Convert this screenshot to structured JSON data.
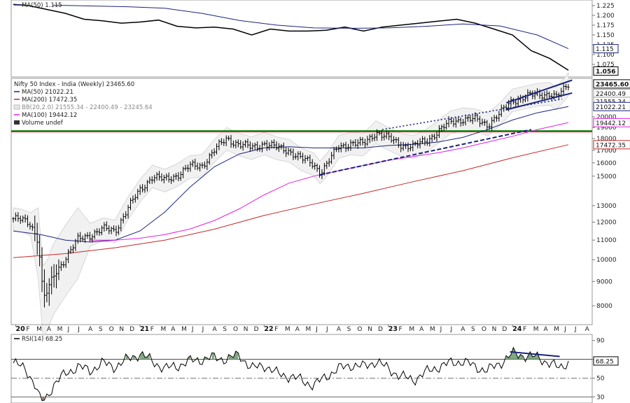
{
  "chart_data": [
    {
      "type": "line",
      "panel": "ratio",
      "legend": [
        {
          "name": "MA(50) 1.115",
          "color": "#1a237e"
        }
      ],
      "y_ticks": [
        "1.225",
        "1.200",
        "1.175",
        "1.150",
        "1.125",
        "1.100",
        "1.075"
      ],
      "last_value_tag": "1.056",
      "ma_tag": "1.115",
      "series": [
        {
          "role": "ratio",
          "color": "#000000",
          "x": [
            2019.98,
            2020.1,
            2020.25,
            2020.4,
            2020.55,
            2020.7,
            2020.85,
            2021.0,
            2021.15,
            2021.3,
            2021.45,
            2021.6,
            2021.75,
            2021.9,
            2022.05,
            2022.2,
            2022.35,
            2022.5,
            2022.65,
            2022.8,
            2022.95,
            2023.1,
            2023.25,
            2023.4,
            2023.55,
            2023.7,
            2023.85,
            2024.0,
            2024.15,
            2024.3,
            2024.45
          ],
          "y": [
            1.228,
            1.225,
            1.215,
            1.205,
            1.19,
            1.186,
            1.18,
            1.183,
            1.188,
            1.172,
            1.168,
            1.17,
            1.165,
            1.15,
            1.165,
            1.16,
            1.16,
            1.162,
            1.17,
            1.16,
            1.17,
            1.175,
            1.18,
            1.185,
            1.19,
            1.18,
            1.165,
            1.15,
            1.11,
            1.09,
            1.06
          ]
        },
        {
          "role": "ma50",
          "color": "#1a237e",
          "x": [
            2020.3,
            2020.6,
            2020.9,
            2021.2,
            2021.5,
            2021.8,
            2022.1,
            2022.4,
            2022.7,
            2023.0,
            2023.3,
            2023.6,
            2023.9,
            2024.2,
            2024.45
          ],
          "y": [
            1.226,
            1.224,
            1.222,
            1.218,
            1.205,
            1.187,
            1.175,
            1.168,
            1.167,
            1.168,
            1.172,
            1.178,
            1.173,
            1.15,
            1.115
          ]
        }
      ]
    },
    {
      "type": "line",
      "panel": "price",
      "title": "Nifty 50 Index - India (Weekly) 23465.60",
      "yscale": "log",
      "legend": [
        {
          "name": "MA(50) 21022.21",
          "color": "#1a237e"
        },
        {
          "name": "MA(200) 17472.35",
          "color": "#c62828"
        },
        {
          "name": "BB(20,2.0) 21555.34 - 22400.49 - 23245.64",
          "color": "#bdbdbd"
        },
        {
          "name": "MA(100) 19442.12",
          "color": "#e020e0"
        },
        {
          "name": "Volume undef",
          "color": "#333333"
        }
      ],
      "x_years": [
        {
          "label": "20",
          "x": 2020.0
        },
        {
          "label": "21",
          "x": 2021.0
        },
        {
          "label": "22",
          "x": 2022.0
        },
        {
          "label": "23",
          "x": 2023.0
        },
        {
          "label": "24",
          "x": 2024.0
        }
      ],
      "x_months": [
        "F",
        "M",
        "A",
        "M",
        "J",
        "J",
        "A",
        "S",
        "O",
        "N",
        "D"
      ],
      "x_months_2024": [
        "F",
        "M",
        "A",
        "M",
        "J",
        "J",
        "A"
      ],
      "y_ticks": [
        8000,
        9000,
        10000,
        11000,
        12000,
        13000,
        15000,
        16000,
        17000,
        18000,
        19000,
        20000
      ],
      "tags": [
        {
          "value": "23465.60",
          "price": 23465.6,
          "bg": "#ffffff",
          "border": "#000000",
          "bold": true
        },
        {
          "value": "22400.49",
          "price": 22400.49,
          "bg": "#ffffff",
          "border": "#999999",
          "bold": false
        },
        {
          "value": "21555.34",
          "price": 21555.34,
          "bg": "#ffffff",
          "border": "#999999",
          "bold": false
        },
        {
          "value": "21022.21",
          "price": 21022.21,
          "bg": "#ffffff",
          "border": "#1a237e",
          "bold": false
        },
        {
          "value": "19442.12",
          "price": 19442.12,
          "bg": "#ffffff",
          "border": "#e020e0",
          "bold": false
        },
        {
          "value": "17472.35",
          "price": 17472.35,
          "bg": "#ffffff",
          "border": "#c62828",
          "bold": false
        }
      ],
      "price_path": {
        "x": [
          2019.98,
          2020.05,
          2020.12,
          2020.18,
          2020.22,
          2020.26,
          2020.3,
          2020.4,
          2020.5,
          2020.6,
          2020.7,
          2020.8,
          2020.9,
          2021.0,
          2021.1,
          2021.2,
          2021.3,
          2021.4,
          2021.5,
          2021.6,
          2021.7,
          2021.8,
          2021.9,
          2022.0,
          2022.1,
          2022.2,
          2022.3,
          2022.4,
          2022.45,
          2022.5,
          2022.6,
          2022.7,
          2022.8,
          2022.9,
          2023.0,
          2023.1,
          2023.2,
          2023.3,
          2023.4,
          2023.5,
          2023.6,
          2023.7,
          2023.8,
          2023.9,
          2024.0,
          2024.1,
          2024.2,
          2024.3,
          2024.35,
          2024.42,
          2024.45
        ],
        "y": [
          12200,
          12100,
          11900,
          11000,
          8300,
          8600,
          9200,
          10100,
          11000,
          11300,
          11600,
          11500,
          12800,
          14000,
          15000,
          14700,
          15100,
          15700,
          15800,
          17000,
          18000,
          17500,
          17200,
          17600,
          17200,
          17000,
          16300,
          15900,
          15300,
          15800,
          17300,
          17600,
          17500,
          18600,
          18000,
          17500,
          17300,
          17800,
          18600,
          19500,
          19800,
          19700,
          19300,
          20300,
          21700,
          22000,
          22300,
          22400,
          21900,
          22900,
          23465
        ]
      },
      "series": [
        {
          "role": "ma50",
          "color": "#1a237e",
          "x": [
            2019.98,
            2020.2,
            2020.4,
            2020.6,
            2020.8,
            2021.0,
            2021.2,
            2021.4,
            2021.6,
            2021.8,
            2022.0,
            2022.2,
            2022.4,
            2022.6,
            2022.8,
            2023.0,
            2023.2,
            2023.4,
            2023.6,
            2023.8,
            2024.0,
            2024.2,
            2024.45
          ],
          "y": [
            11500,
            11300,
            11000,
            10900,
            11000,
            11500,
            12600,
            14200,
            15700,
            16700,
            17200,
            17300,
            17200,
            17200,
            17200,
            17400,
            17500,
            17700,
            18100,
            18800,
            19700,
            20400,
            21022
          ]
        },
        {
          "role": "ma100",
          "color": "#e020e0",
          "x": [
            2020.6,
            2020.8,
            2021.0,
            2021.2,
            2021.4,
            2021.6,
            2021.8,
            2022.0,
            2022.2,
            2022.4,
            2022.6,
            2022.8,
            2023.0,
            2023.2,
            2023.4,
            2023.6,
            2023.8,
            2024.0,
            2024.2,
            2024.45
          ],
          "y": [
            11000,
            11000,
            11100,
            11300,
            11600,
            12100,
            12800,
            13700,
            14500,
            15000,
            15400,
            15800,
            16200,
            16500,
            16800,
            17200,
            17700,
            18200,
            18800,
            19442
          ]
        },
        {
          "role": "ma200",
          "color": "#c62828",
          "x": [
            2019.98,
            2020.4,
            2020.8,
            2021.2,
            2021.6,
            2022.0,
            2022.4,
            2022.8,
            2023.2,
            2023.6,
            2024.0,
            2024.45
          ],
          "y": [
            10100,
            10300,
            10600,
            11000,
            11600,
            12400,
            13100,
            13800,
            14600,
            15400,
            16400,
            17472
          ]
        }
      ],
      "hlines": [
        {
          "price": 18600,
          "color": "#cc0000"
        },
        {
          "price": 18700,
          "color": "#008000"
        }
      ],
      "trendlines": [
        {
          "style": "dashed",
          "color": "#1a237e",
          "x": [
            2022.45,
            2024.15
          ],
          "y": [
            15100,
            18800
          ]
        },
        {
          "style": "dotted",
          "color": "#1a237e",
          "x": [
            2022.95,
            2024.4
          ],
          "y": [
            18800,
            21800
          ]
        },
        {
          "style": "solid",
          "color": "#1a237e",
          "x": [
            2023.95,
            2024.48
          ],
          "y": [
            21400,
            23900
          ]
        },
        {
          "style": "solid",
          "color": "#1a237e",
          "x": [
            2023.95,
            2024.48
          ],
          "y": [
            20700,
            22450
          ]
        }
      ]
    },
    {
      "type": "line",
      "panel": "rsi",
      "legend": [
        {
          "name": "RSI(14) 68.25",
          "color": "#000000"
        }
      ],
      "y_ticks": [
        90,
        70,
        50,
        30
      ],
      "ylim": [
        25,
        95
      ],
      "last_value_tag": "68.25",
      "series": [
        {
          "role": "rsi",
          "color": "#000000",
          "x": [
            2019.98,
            2020.08,
            2020.15,
            2020.2,
            2020.24,
            2020.3,
            2020.4,
            2020.5,
            2020.6,
            2020.7,
            2020.8,
            2020.9,
            2021.0,
            2021.1,
            2021.2,
            2021.3,
            2021.4,
            2021.5,
            2021.6,
            2021.7,
            2021.8,
            2021.9,
            2022.0,
            2022.1,
            2022.2,
            2022.3,
            2022.4,
            2022.5,
            2022.6,
            2022.7,
            2022.8,
            2022.9,
            2023.0,
            2023.1,
            2023.2,
            2023.3,
            2023.4,
            2023.5,
            2023.6,
            2023.7,
            2023.8,
            2023.9,
            2024.0,
            2024.1,
            2024.2,
            2024.3,
            2024.38,
            2024.45
          ],
          "y": [
            66,
            60,
            44,
            25,
            28,
            42,
            55,
            62,
            58,
            66,
            62,
            70,
            76,
            68,
            60,
            63,
            68,
            70,
            72,
            70,
            75,
            60,
            64,
            55,
            52,
            48,
            42,
            52,
            60,
            64,
            62,
            68,
            60,
            52,
            48,
            56,
            62,
            66,
            68,
            62,
            58,
            66,
            76,
            74,
            72,
            66,
            60,
            68.25
          ]
        }
      ],
      "divergence_line": {
        "color": "#1a237e",
        "x": [
          2023.98,
          2024.38
        ],
        "y": [
          78,
          73
        ]
      }
    }
  ]
}
